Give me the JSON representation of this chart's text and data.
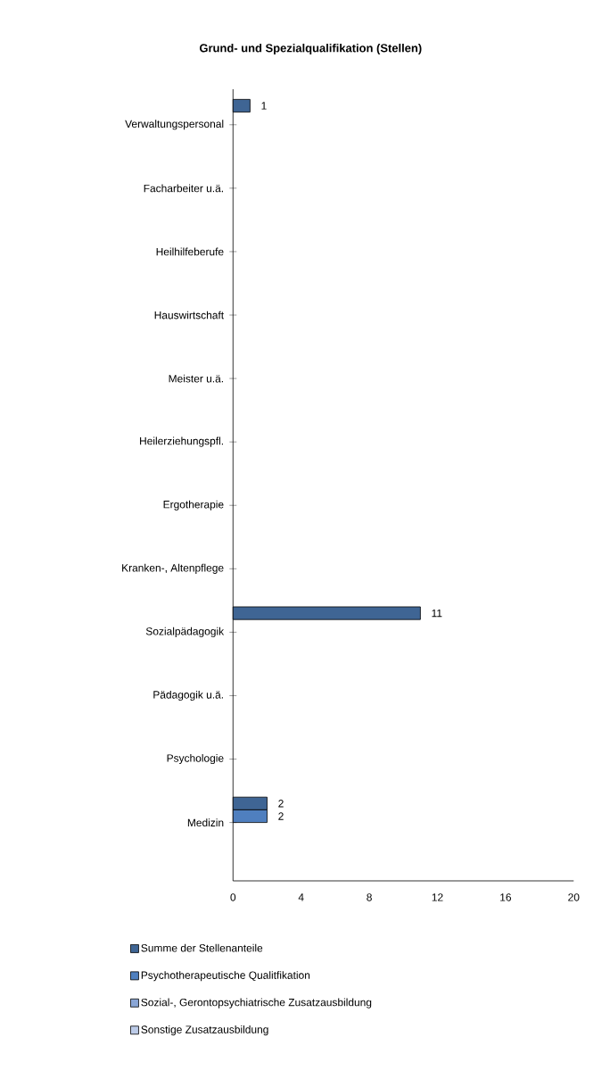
{
  "chart_data": {
    "type": "bar",
    "orientation": "horizontal",
    "title": "Grund- und Spezialqualifikation (Stellen)",
    "categories": [
      "Verwaltungspersonal",
      "Facharbeiter u.ä.",
      "Heilhilfeberufe",
      "Hauswirtschaft",
      "Meister u.ä.",
      "Heilerziehungspfl.",
      "Ergotherapie",
      "Kranken-, Altenpflege",
      "Sozialpädagogik",
      "Pädagogik u.ä.",
      "Psychologie",
      "Medizin"
    ],
    "series": [
      {
        "name": "Summe der Stellenanteile",
        "color": "#3f6594",
        "values": [
          1,
          null,
          null,
          null,
          null,
          null,
          null,
          null,
          11,
          null,
          null,
          2
        ]
      },
      {
        "name": "Psychotherapeutische Qualitfikation",
        "color": "#4f7fbf",
        "values": [
          null,
          null,
          null,
          null,
          null,
          null,
          null,
          null,
          null,
          null,
          null,
          2
        ]
      },
      {
        "name": "Sozial-, Gerontopsychiatrische Zusatzausbildung",
        "color": "#8aa6d6",
        "values": [
          null,
          null,
          null,
          null,
          null,
          null,
          null,
          null,
          null,
          null,
          null,
          null
        ]
      },
      {
        "name": "Sonstige Zusatzausbildung",
        "color": "#bccbe8",
        "values": [
          null,
          null,
          null,
          null,
          null,
          null,
          null,
          null,
          null,
          null,
          null,
          null
        ]
      }
    ],
    "xlim": [
      0,
      20
    ],
    "xticks": [
      0,
      4,
      8,
      12,
      16,
      20
    ],
    "data_labels": true,
    "legend": "bottom"
  }
}
